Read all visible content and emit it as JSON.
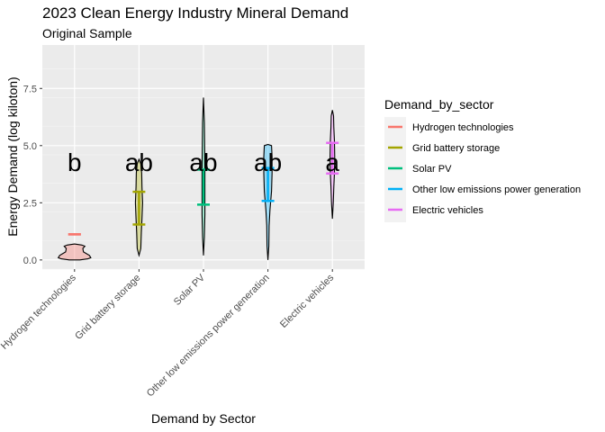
{
  "chart_data": {
    "type": "violin",
    "title": "2023 Clean Energy Industry Mineral Demand",
    "subtitle": "Original Sample",
    "xlabel": "Demand by Sector",
    "ylabel": "Energy Demand (log kiloton)",
    "ylim": [
      -0.4,
      9.4
    ],
    "yticks": [
      0.0,
      2.5,
      5.0,
      7.5
    ],
    "ytick_labels": [
      "0.0",
      "2.5",
      "5.0",
      "7.5"
    ],
    "categories": [
      "Hydrogen technologies",
      "Grid battery storage",
      "Solar PV",
      "Other low emissions power generation",
      "Electric vehicles"
    ],
    "series": [
      {
        "name": "Hydrogen technologies",
        "color": "#F8766D",
        "violin": [
          [
            0.0,
            0.18
          ],
          [
            0.05,
            0.45
          ],
          [
            0.1,
            0.55
          ],
          [
            0.2,
            0.5
          ],
          [
            0.35,
            0.3
          ],
          [
            0.5,
            0.28
          ],
          [
            0.6,
            0.35
          ],
          [
            0.65,
            0.25
          ],
          [
            0.7,
            0.0
          ]
        ],
        "q1": 1.12,
        "q3": 1.12,
        "letter": "b"
      },
      {
        "name": "Grid battery storage",
        "color": "#A3A500",
        "violin": [
          [
            0.2,
            0.0
          ],
          [
            0.5,
            0.06
          ],
          [
            1.2,
            0.08
          ],
          [
            1.8,
            0.1
          ],
          [
            2.5,
            0.12
          ],
          [
            3.2,
            0.1
          ],
          [
            3.8,
            0.09
          ],
          [
            4.2,
            0.06
          ],
          [
            4.4,
            0.0
          ]
        ],
        "q1": 1.55,
        "q3": 2.98,
        "letter": "ab"
      },
      {
        "name": "Solar PV",
        "color": "#00BF7D",
        "violin": [
          [
            0.2,
            0.0
          ],
          [
            1.0,
            0.03
          ],
          [
            2.0,
            0.05
          ],
          [
            3.0,
            0.05
          ],
          [
            4.0,
            0.05
          ],
          [
            5.0,
            0.04
          ],
          [
            6.0,
            0.03
          ],
          [
            7.1,
            0.0
          ]
        ],
        "q1": 2.42,
        "q3": 3.95,
        "letter": "ab"
      },
      {
        "name": "Other low emissions power generation",
        "color": "#00B0F6",
        "violin": [
          [
            0.0,
            0.0
          ],
          [
            0.6,
            0.03
          ],
          [
            1.5,
            0.04
          ],
          [
            2.2,
            0.07
          ],
          [
            3.0,
            0.12
          ],
          [
            3.8,
            0.14
          ],
          [
            4.5,
            0.14
          ],
          [
            5.0,
            0.12
          ],
          [
            5.05,
            0.0
          ]
        ],
        "q1": 2.58,
        "q3": 4.02,
        "letter": "ab"
      },
      {
        "name": "Electric vehicles",
        "color": "#E76BF3",
        "violin": [
          [
            1.8,
            0.0
          ],
          [
            2.5,
            0.03
          ],
          [
            3.2,
            0.05
          ],
          [
            3.8,
            0.07
          ],
          [
            4.5,
            0.08
          ],
          [
            5.2,
            0.07
          ],
          [
            5.8,
            0.05
          ],
          [
            6.3,
            0.04
          ],
          [
            6.55,
            0.0
          ]
        ],
        "q1": 3.78,
        "q3": 5.12,
        "letter": "a"
      }
    ],
    "legend": {
      "title": "Demand_by_sector",
      "position": "right"
    },
    "grid": true
  }
}
